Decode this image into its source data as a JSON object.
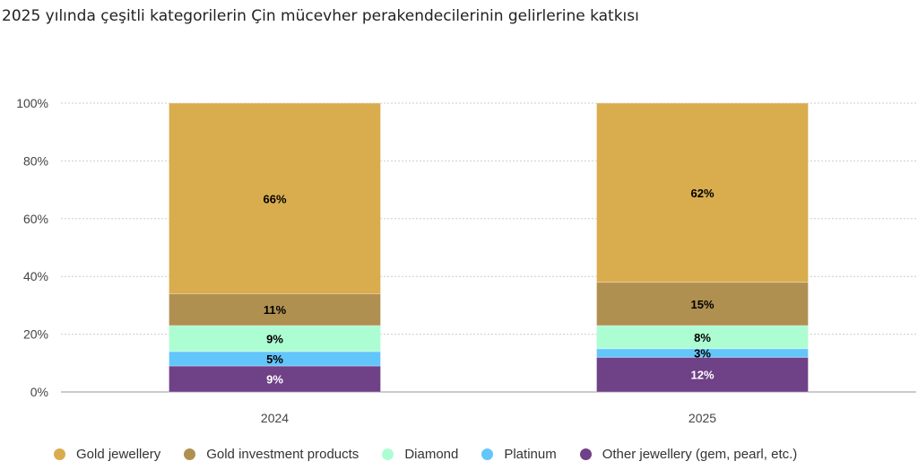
{
  "title": "2025 yılında çeşitli kategorilerin Çin mücevher perakendecilerinin gelirlerine katkısı",
  "chart_data": {
    "type": "bar",
    "stacked": true,
    "title": "2025 yılında çeşitli kategorilerin Çin mücevher perakendecilerinin gelirlerine katkısı",
    "categories": [
      "2024",
      "2025"
    ],
    "ylim": [
      0,
      100
    ],
    "yticks": [
      "0%",
      "20%",
      "40%",
      "60%",
      "80%",
      "100%"
    ],
    "grid": true,
    "legend": "bottom",
    "series": [
      {
        "name": "Other jewellery (gem, pearl, etc.)",
        "values": [
          9,
          12
        ],
        "color": "#6f4186",
        "label_color": "#ffffff"
      },
      {
        "name": "Platinum",
        "values": [
          5,
          3
        ],
        "color": "#63c6fb",
        "label_color": "#000000"
      },
      {
        "name": "Diamond",
        "values": [
          9,
          8
        ],
        "color": "#adfdd2",
        "label_color": "#000000"
      },
      {
        "name": "Gold investment products",
        "values": [
          11,
          15
        ],
        "color": "#b09050",
        "label_color": "#000000"
      },
      {
        "name": "Gold jewellery",
        "values": [
          66,
          62
        ],
        "color": "#d9ac4e",
        "label_color": "#000000"
      }
    ],
    "legend_order": [
      "Gold jewellery",
      "Gold investment products",
      "Diamond",
      "Platinum",
      "Other jewellery (gem, pearl, etc.)"
    ]
  }
}
